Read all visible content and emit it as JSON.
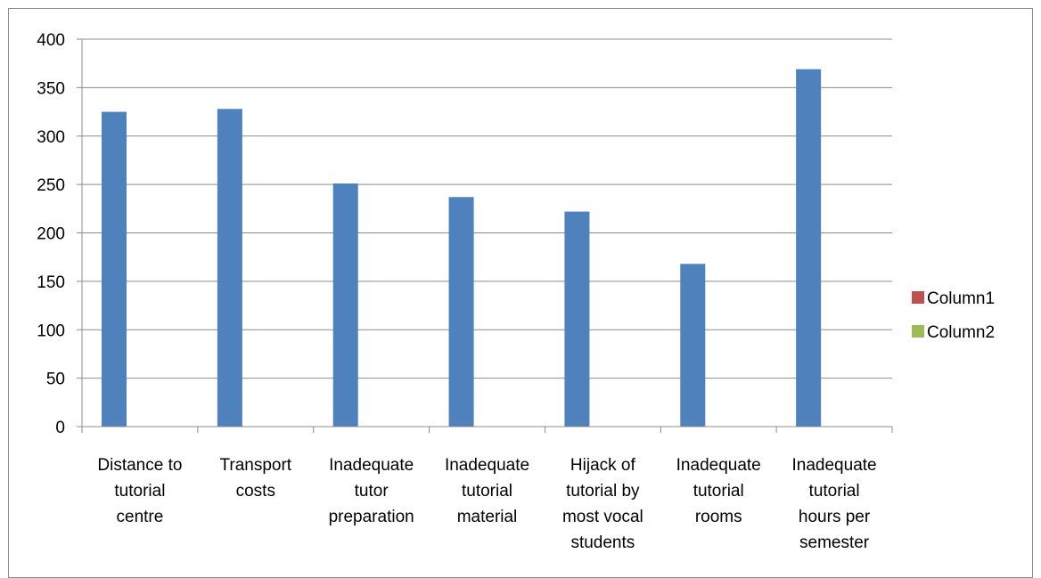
{
  "chart_data": {
    "type": "bar",
    "categories": [
      [
        "Distance to",
        "tutorial",
        "centre"
      ],
      [
        "Transport",
        "costs"
      ],
      [
        "Inadequate",
        "tutor",
        "preparation"
      ],
      [
        "Inadequate",
        "tutorial",
        "material"
      ],
      [
        "Hijack of",
        "tutorial by",
        "most vocal",
        "students"
      ],
      [
        "Inadequate",
        "tutorial",
        "rooms"
      ],
      [
        "Inadequate",
        "tutorial",
        "hours per",
        "semester"
      ]
    ],
    "series": [
      {
        "values": [
          325,
          328,
          251,
          237,
          222,
          168,
          369
        ],
        "color": "#4f81bd"
      },
      {
        "name": "Column1",
        "values": [
          null,
          null,
          null,
          null,
          null,
          null,
          null
        ],
        "color": "#c0504d"
      },
      {
        "name": "Column2",
        "values": [
          null,
          null,
          null,
          null,
          null,
          null,
          null
        ],
        "color": "#9bbb59"
      }
    ],
    "ylim": [
      0,
      400
    ],
    "yticks": [
      0,
      50,
      100,
      150,
      200,
      250,
      300,
      350,
      400
    ],
    "grid": true,
    "legend": "right",
    "title": "",
    "xlabel": "",
    "ylabel": ""
  }
}
